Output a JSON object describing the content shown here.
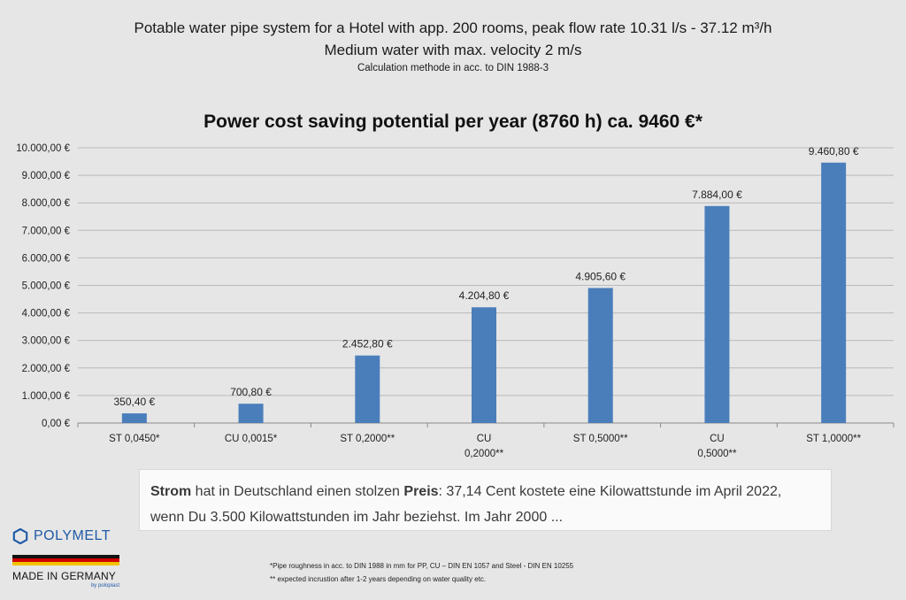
{
  "header": {
    "line1": "Potable water pipe system for a Hotel with app. 200 rooms, peak flow rate 10.31 l/s - 37.12 m³/h",
    "line2": "Medium water  with  max. velocity 2 m/s",
    "line3": "Calculation methode in acc. to DIN 1988-3"
  },
  "chart_data": {
    "type": "bar",
    "title": "Power cost saving potential per year (8760 h)  ca. 9460 €*",
    "categories": [
      [
        "ST 0,0450*"
      ],
      [
        "CU 0,0015*"
      ],
      [
        "ST 0,2000**"
      ],
      [
        "CU",
        "0,2000**"
      ],
      [
        "ST 0,5000**"
      ],
      [
        "CU",
        "0,5000**"
      ],
      [
        "ST 1,0000**"
      ]
    ],
    "values": [
      350.4,
      700.8,
      2452.8,
      4204.8,
      4905.6,
      7884.0,
      9460.8
    ],
    "value_labels": [
      "350,40 €",
      "700,80 €",
      "2.452,80 €",
      "4.204,80 €",
      "4.905,60 €",
      "7.884,00 €",
      "9.460,80 €"
    ],
    "ylim": [
      0,
      10000
    ],
    "yticks": [
      0,
      1000,
      2000,
      3000,
      4000,
      5000,
      6000,
      7000,
      8000,
      9000,
      10000
    ],
    "ytick_labels": [
      "0,00 €",
      "1.000,00 €",
      "2.000,00 €",
      "3.000,00 €",
      "4.000,00 €",
      "5.000,00 €",
      "6.000,00 €",
      "7.000,00 €",
      "8.000,00 €",
      "9.000,00 €",
      "10.000,00 €"
    ],
    "grid": true,
    "bar_color": "#4a7ebb",
    "grid_color": "#b9b9b9"
  },
  "note": {
    "w1": "Strom",
    "t1": " hat in Deutschland einen stolzen ",
    "w2": "Preis",
    "t2": ": 37,14 Cent kostete eine Kilowattstunde im April 2022, wenn Du 3.500 Kilowattstunden im Jahr beziehst. Im Jahr 2000 ..."
  },
  "logo": {
    "name": "POLYMELT",
    "made": "MADE IN GERMANY",
    "by": "by polopiast",
    "brand_color": "#1f5aa6",
    "flag_colors": [
      "#111111",
      "#d00000",
      "#f2c200"
    ]
  },
  "footnotes": {
    "f1": "*Pipe roughness in acc. to DIN 1988 in mm for PP, CU – DIN EN 1057 and Steel - DIN EN 10255",
    "f2": "** expected incrustion after 1-2 years  depending on water quality etc."
  }
}
